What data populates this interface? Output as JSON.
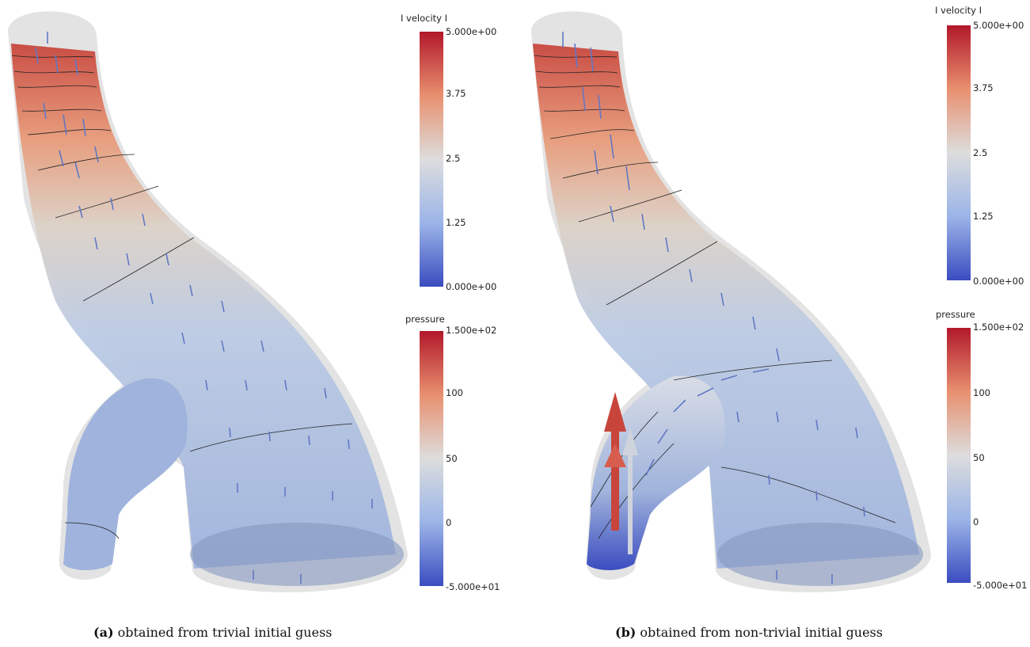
{
  "panels": [
    {
      "id": "a",
      "label": "(a)",
      "caption": "obtained from trivial initial guess",
      "colorbars": [
        {
          "title": "I velocity I",
          "ticks": [
            "5.000e+00",
            "3.75",
            "2.5",
            "1.25",
            "0.000e+00"
          ]
        },
        {
          "title": "pressure",
          "ticks": [
            "1.500e+02",
            "100",
            "50",
            "0",
            "-5.000e+01"
          ]
        }
      ]
    },
    {
      "id": "b",
      "label": "(b)",
      "caption": "obtained from non-trivial initial guess",
      "colorbars": [
        {
          "title": "I velocity I",
          "ticks": [
            "5.000e+00",
            "3.75",
            "2.5",
            "1.25",
            "0.000e+00"
          ]
        },
        {
          "title": "pressure",
          "ticks": [
            "1.500e+02",
            "100",
            "50",
            "0",
            "-5.000e+01"
          ]
        }
      ]
    }
  ],
  "colors": {
    "colormap_high": "#b2182b",
    "colormap_mid": "#dddddd",
    "colormap_low": "#3b4cc0",
    "vessel_outer": "#d9d9d9",
    "vessel_fill": "#9cb1d9",
    "arrow": "#6178c4"
  }
}
